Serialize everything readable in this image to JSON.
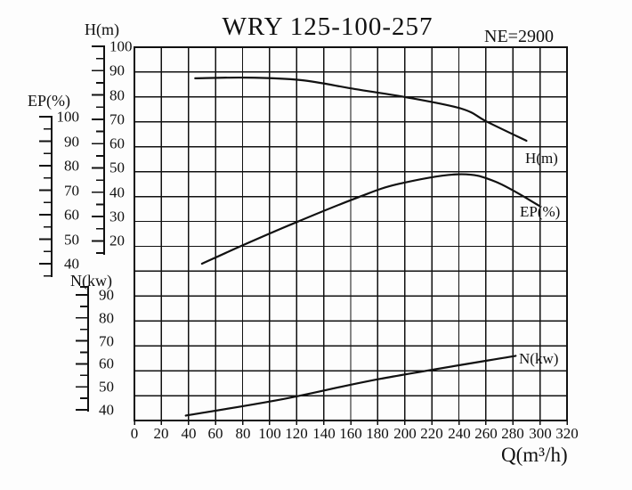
{
  "header": {
    "title": "WRY 125-100-257",
    "speed": "NE=2900"
  },
  "x_axis": {
    "label": "Q(m³/h)",
    "ticks": [
      "0",
      "20",
      "40",
      "60",
      "80",
      "100",
      "120",
      "140",
      "160",
      "180",
      "200",
      "220",
      "240",
      "260",
      "280",
      "300",
      "320"
    ]
  },
  "axes": {
    "h": {
      "title": "H(m)",
      "ticks": [
        "100",
        "90",
        "80",
        "70",
        "60",
        "50",
        "40",
        "30",
        "20"
      ]
    },
    "ep": {
      "title": "EP(%)",
      "ticks": [
        "100",
        "90",
        "80",
        "70",
        "60",
        "50",
        "40"
      ]
    },
    "n": {
      "title": "N(kw)",
      "ticks": [
        "90",
        "80",
        "70",
        "60",
        "50",
        "40"
      ]
    }
  },
  "curve_labels": {
    "h": "H(m)",
    "ep": "EP(%)",
    "n": "N(kw)"
  },
  "colors": {
    "ink": "#111111",
    "grid": "#1a1a1a",
    "background": "#fdfdfd"
  },
  "chart_data": {
    "type": "line",
    "title": "WRY 125-100-257",
    "annotation": "NE=2900",
    "xlabel": "Q(m³/h)",
    "x_range": [
      0,
      320
    ],
    "x_tick_step": 20,
    "grid": true,
    "legend_position": "labels-at-line-ends",
    "series": [
      {
        "name": "H(m)",
        "y_axis": "H(m)",
        "y_axis_ticks_top_to_bottom": [
          100,
          20
        ],
        "points": [
          [
            45,
            87.5
          ],
          [
            82,
            87.8
          ],
          [
            123,
            86.8
          ],
          [
            163,
            83.2
          ],
          [
            200,
            80
          ],
          [
            242,
            75.3
          ],
          [
            261,
            70
          ],
          [
            290,
            62.4
          ]
        ]
      },
      {
        "name": "EP(%)",
        "y_axis": "EP(%)",
        "y_axis_ticks_top_to_bottom": [
          100,
          40
        ],
        "points": [
          [
            50,
            40
          ],
          [
            80,
            47.5
          ],
          [
            120,
            57
          ],
          [
            165,
            67
          ],
          [
            195,
            72.5
          ],
          [
            240,
            76.5
          ],
          [
            267,
            73.5
          ],
          [
            300,
            63.5
          ]
        ]
      },
      {
        "name": "N(kw)",
        "y_axis": "N(kw)",
        "y_axis_ticks_top_to_bottom": [
          90,
          40
        ],
        "points": [
          [
            38,
            37.5
          ],
          [
            110,
            44.7
          ],
          [
            182,
            53.5
          ],
          [
            282,
            63.5
          ]
        ]
      }
    ]
  }
}
